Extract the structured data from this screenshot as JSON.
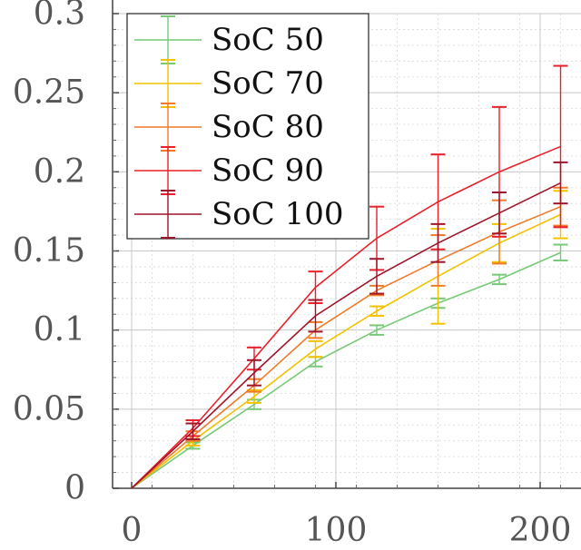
{
  "chart_data": {
    "type": "line",
    "title": "",
    "xlabel": "",
    "ylabel": "",
    "xlim": [
      -10,
      215
    ],
    "ylim": [
      0,
      0.3
    ],
    "x_ticks": [
      0,
      100,
      200
    ],
    "x_tick_labels": [
      "0",
      "100",
      "200"
    ],
    "y_ticks": [
      0,
      0.05,
      0.1,
      0.15,
      0.2,
      0.25,
      0.3
    ],
    "y_tick_labels": [
      "0",
      "0.05",
      "0.1",
      "0.15",
      "0.2",
      "0.25",
      "0.3"
    ],
    "grid": true,
    "legend_position": "top-left",
    "x": [
      0,
      30,
      60,
      90,
      120,
      150,
      180,
      210
    ],
    "series": [
      {
        "name": "SoC 50",
        "color": "#77c977",
        "values": [
          0,
          0.027,
          0.053,
          0.08,
          0.1,
          0.117,
          0.132,
          0.149
        ],
        "error": [
          0,
          0.002,
          0.003,
          0.003,
          0.003,
          0.003,
          0.003,
          0.005
        ]
      },
      {
        "name": "SoC 70",
        "color": "#f2c200",
        "values": [
          0,
          0.03,
          0.058,
          0.088,
          0.112,
          0.134,
          0.155,
          0.173
        ],
        "error": [
          0,
          0.003,
          0.004,
          0.005,
          0.003,
          0.03,
          0.012,
          0.015
        ]
      },
      {
        "name": "SoC 80",
        "color": "#f07a2a",
        "values": [
          0,
          0.033,
          0.065,
          0.1,
          0.125,
          0.144,
          0.162,
          0.178
        ],
        "error": [
          0,
          0.003,
          0.004,
          0.005,
          0.003,
          0.016,
          0.02,
          0.012
        ]
      },
      {
        "name": "SoC 90",
        "color": "#e8202a",
        "values": [
          0,
          0.038,
          0.082,
          0.127,
          0.158,
          0.181,
          0.2,
          0.216
        ],
        "error": [
          0,
          0.005,
          0.007,
          0.01,
          0.02,
          0.03,
          0.041,
          0.051
        ]
      },
      {
        "name": "SoC 100",
        "color": "#a0142a",
        "values": [
          0,
          0.036,
          0.073,
          0.109,
          0.134,
          0.155,
          0.174,
          0.193
        ],
        "error": [
          0,
          0.005,
          0.008,
          0.01,
          0.011,
          0.012,
          0.013,
          0.013
        ]
      }
    ]
  }
}
